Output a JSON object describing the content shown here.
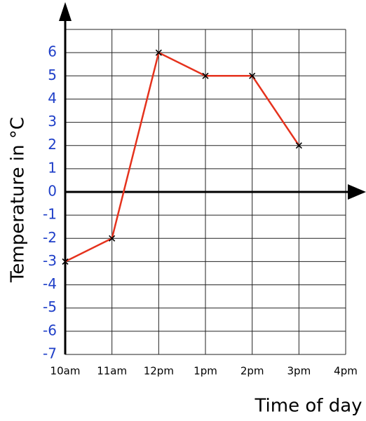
{
  "chart_data": {
    "type": "line",
    "x_label": "Time of day",
    "y_label": "Temperature in °C",
    "categories": [
      "10am",
      "11am",
      "12pm",
      "1pm",
      "2pm",
      "3pm",
      "4pm"
    ],
    "values": [
      -3,
      -2,
      6,
      5,
      5,
      2,
      null
    ],
    "color": "#e5321d",
    "ylim": [
      -7,
      7
    ],
    "yticks": [
      -7,
      -6,
      -5,
      -4,
      -3,
      -2,
      -1,
      0,
      1,
      2,
      3,
      4,
      5,
      6
    ],
    "grid": true
  }
}
